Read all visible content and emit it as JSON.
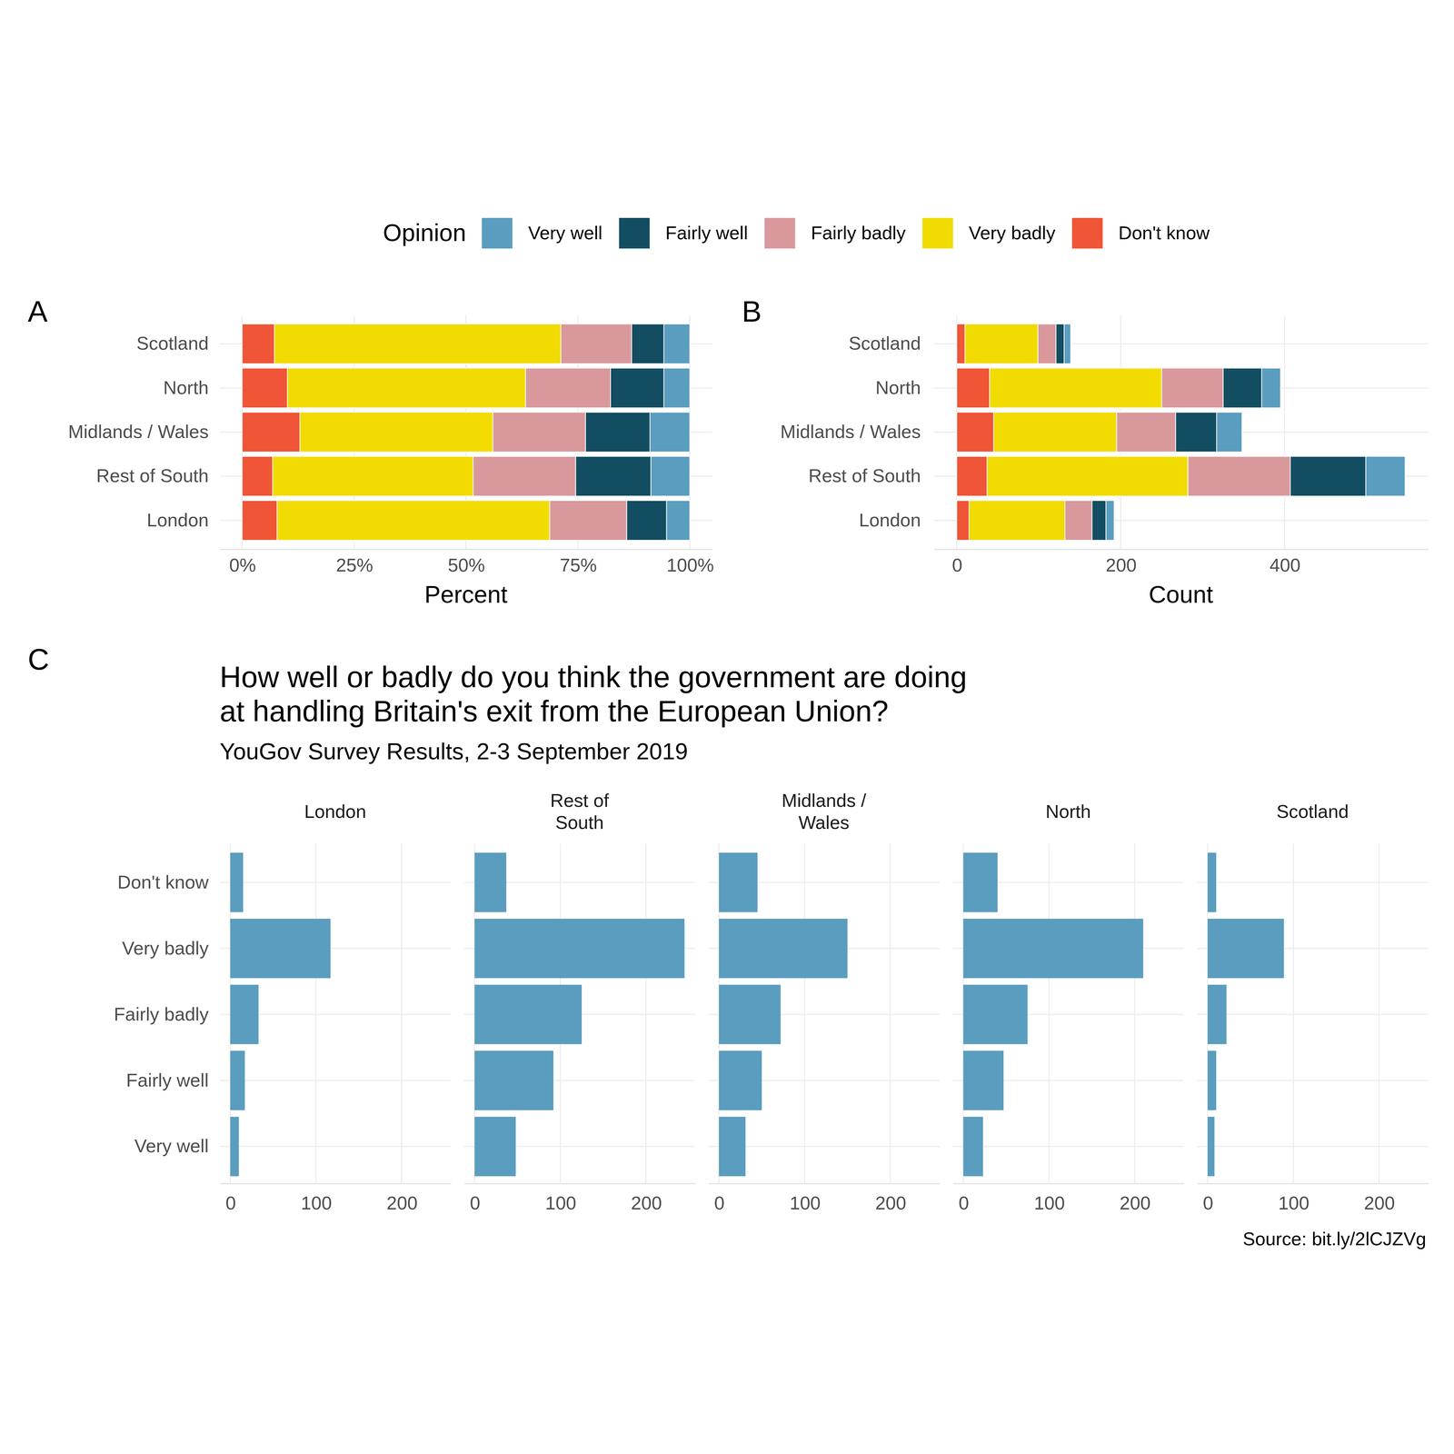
{
  "chart_data": [
    {
      "type": "bar",
      "orientation": "horizontal",
      "stacked": true,
      "grid": true,
      "legend": "top",
      "tag": "A",
      "xlabel": "Percent",
      "legend_title": "Opinion",
      "categories": [
        "Scotland",
        "North",
        "Midlands / Wales",
        "Rest of South",
        "London"
      ],
      "series": [
        {
          "name": "Very well",
          "color": "#5A9DBF",
          "values": [
            5.8,
            5.8,
            8.9,
            8.7,
            5.2
          ]
        },
        {
          "name": "Fairly well",
          "color": "#134D61",
          "values": [
            7.2,
            11.9,
            14.4,
            16.8,
            8.9
          ]
        },
        {
          "name": "Fairly badly",
          "color": "#D9999C",
          "values": [
            15.8,
            19.0,
            20.7,
            22.9,
            17.2
          ]
        },
        {
          "name": "Very badly",
          "color": "#F2DB00",
          "values": [
            64.0,
            53.2,
            43.1,
            44.8,
            60.9
          ]
        },
        {
          "name": "Don't know",
          "color": "#EF5536",
          "values": [
            7.2,
            10.1,
            12.9,
            6.8,
            7.8
          ]
        }
      ],
      "xlim": [
        -5,
        105
      ],
      "xticks": [
        {
          "value": 0,
          "label": "0%"
        },
        {
          "value": 25,
          "label": "25%"
        },
        {
          "value": 50,
          "label": "50%"
        },
        {
          "value": 75,
          "label": "75%"
        },
        {
          "value": 100,
          "label": "100%"
        }
      ]
    },
    {
      "type": "bar",
      "orientation": "horizontal",
      "stacked": true,
      "grid": true,
      "tag": "B",
      "xlabel": "Count",
      "categories": [
        "Scotland",
        "North",
        "Midlands / Wales",
        "Rest of South",
        "London"
      ],
      "series": [
        {
          "color": "#5A9DBF",
          "values": [
            8,
            23,
            31,
            48,
            10
          ]
        },
        {
          "color": "#134D61",
          "values": [
            10,
            47,
            50,
            92,
            17
          ]
        },
        {
          "color": "#D9999C",
          "values": [
            22,
            75,
            72,
            125,
            33
          ]
        },
        {
          "color": "#F2DB00",
          "values": [
            89,
            210,
            150,
            245,
            117
          ]
        },
        {
          "color": "#EF5536",
          "values": [
            10,
            40,
            45,
            37,
            15
          ]
        }
      ],
      "xlim": [
        -28,
        575
      ],
      "xticks": [
        0,
        200,
        400
      ]
    },
    {
      "type": "bar",
      "orientation": "horizontal",
      "grid": true,
      "color": "#5A9DBF",
      "tag": "C",
      "title": "How well or badly do you think the government are doing\nat handling Britain's exit from the European Union?",
      "subtitle": "YouGov Survey Results, 2-3 September 2019",
      "caption": "Source: bit.ly/2lCJZVg",
      "categories": [
        "Don't know",
        "Very badly",
        "Fairly badly",
        "Fairly well",
        "Very well"
      ],
      "series": [
        {
          "name": "London",
          "values": [
            15,
            117,
            33,
            17,
            10
          ]
        },
        {
          "name": "Rest of\nSouth",
          "values": [
            37,
            245,
            125,
            92,
            48
          ]
        },
        {
          "name": "Midlands /\nWales",
          "values": [
            45,
            150,
            72,
            50,
            31
          ]
        },
        {
          "name": "North",
          "values": [
            40,
            210,
            75,
            47,
            23
          ]
        },
        {
          "name": "Scotland",
          "values": [
            10,
            89,
            22,
            10,
            8
          ]
        }
      ],
      "xlim": [
        -12.25,
        257.25
      ],
      "xticks": [
        0,
        100,
        200
      ]
    }
  ]
}
